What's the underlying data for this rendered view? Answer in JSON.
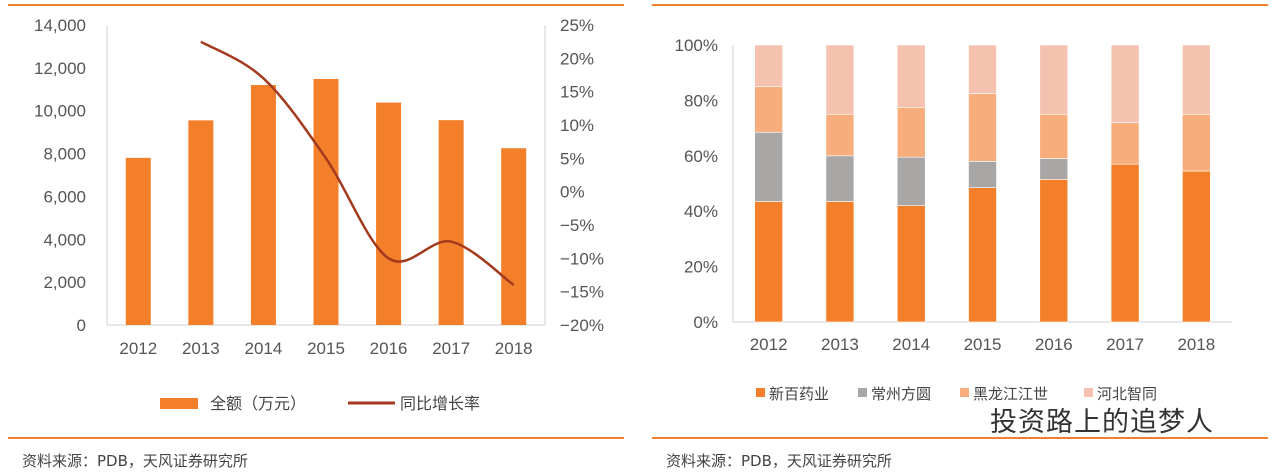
{
  "chart_data": [
    {
      "type": "bar+line",
      "categories": [
        "2012",
        "2013",
        "2014",
        "2015",
        "2016",
        "2017",
        "2018"
      ],
      "series": [
        {
          "name": "全额（万元）",
          "type": "bar",
          "axis": "left",
          "values": [
            7800,
            9550,
            11200,
            11480,
            10380,
            9560,
            8250
          ],
          "color": "#f47f2a"
        },
        {
          "name": "同比增长率",
          "type": "line",
          "axis": "right",
          "values": [
            null,
            22.5,
            17,
            5,
            -10,
            -7.5,
            -14
          ],
          "color": "#a33a1e"
        }
      ],
      "ylim": [
        0,
        14000
      ],
      "yticks": [
        "0",
        "2,000",
        "4,000",
        "6,000",
        "8,000",
        "10,000",
        "12,000",
        "14,000"
      ],
      "y2lim": [
        -20,
        25
      ],
      "y2ticks": [
        "-20%",
        "-15%",
        "-10%",
        "-5%",
        "0%",
        "5%",
        "10%",
        "15%",
        "20%",
        "25%"
      ],
      "legend": "bottom",
      "grid": false,
      "source": "资料来源：PDB，天风证券研究所"
    },
    {
      "type": "stacked-bar",
      "categories": [
        "2012",
        "2013",
        "2014",
        "2015",
        "2016",
        "2017",
        "2018"
      ],
      "series": [
        {
          "name": "新百药业",
          "values": [
            43.5,
            43.5,
            42,
            48.5,
            51.5,
            57,
            54.5
          ],
          "color": "#f47f2a"
        },
        {
          "name": "常州方圆",
          "values": [
            25,
            16.5,
            17.5,
            9.5,
            7.5,
            0,
            0
          ],
          "color": "#a9a6a6"
        },
        {
          "name": "黑龙江江世",
          "values": [
            16.5,
            15,
            18,
            24.5,
            16,
            15,
            20.5
          ],
          "color": "#f8ae7c"
        },
        {
          "name": "河北智同",
          "values": [
            15,
            25,
            22.5,
            17.5,
            25,
            28,
            25
          ],
          "color": "#f6c2b0"
        }
      ],
      "ylim": [
        0,
        100
      ],
      "yticks": [
        "0%",
        "20%",
        "40%",
        "60%",
        "80%",
        "100%"
      ],
      "legend": "bottom",
      "grid": false,
      "source": "资料来源：PDB，天风证券研究所"
    }
  ],
  "watermark": "投资路上的追梦人"
}
